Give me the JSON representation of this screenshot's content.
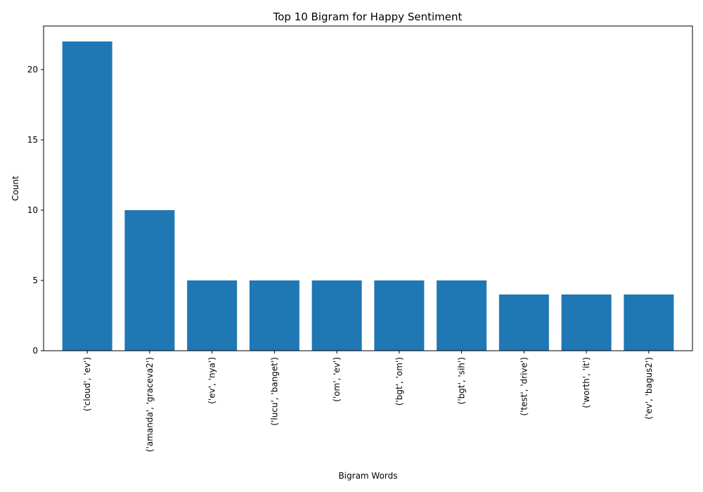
{
  "chart_data": {
    "type": "bar",
    "title": "Top 10 Bigram for Happy Sentiment",
    "xlabel": "Bigram Words",
    "ylabel": "Count",
    "categories": [
      "('cloud', 'ev')",
      "('amanda', 'graceva2')",
      "('ev', 'nya')",
      "('lucu', 'banget')",
      "('om', 'ev')",
      "('bgt', 'om')",
      "('bgt', 'sih')",
      "('test', 'drive')",
      "('worth', 'it')",
      "('ev', 'bagus2')"
    ],
    "values": [
      22,
      10,
      5,
      5,
      5,
      5,
      5,
      4,
      4,
      4
    ],
    "ylim": [
      0,
      23.1
    ],
    "yticks": [
      0,
      5,
      10,
      15,
      20
    ],
    "grid": false,
    "bar_color": "#1f77b4"
  }
}
